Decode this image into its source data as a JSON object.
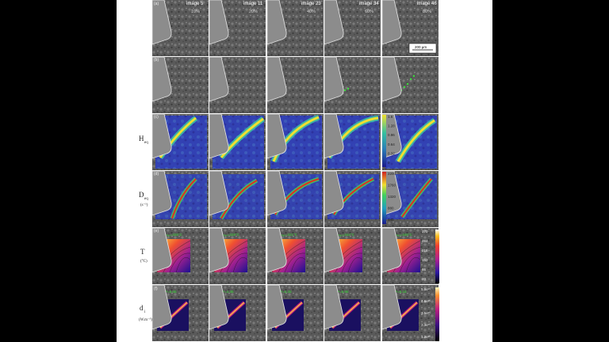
{
  "panel_letters": [
    "(a)",
    "(b)",
    "(c)",
    "(d)",
    "(e)",
    "(f)"
  ],
  "columns": [
    {
      "image": "image 5",
      "pct": "10%"
    },
    {
      "image": "image 11",
      "pct": "20%"
    },
    {
      "image": "image 23",
      "pct": "40%"
    },
    {
      "image": "image 34",
      "pct": "60%"
    },
    {
      "image": "image 46",
      "pct": "80%"
    }
  ],
  "scale_bar": "200 µm",
  "row_labels": {
    "c": {
      "main": "H",
      "sub": "eq"
    },
    "d": {
      "main": "D",
      "sub": "eq",
      "unit": "(s⁻¹)"
    },
    "e": {
      "main": "T",
      "unit": "(°C)"
    },
    "f": {
      "main": "d",
      "sub": "i",
      "unit": "(W.m⁻³)"
    }
  },
  "colorbars": {
    "c": [
      "1.6",
      "1.28",
      "0.96",
      "0.64",
      "0.32",
      "0"
    ],
    "d": [
      "2200",
      "1760",
      "1320",
      "880",
      "440"
    ],
    "e": [
      "370",
      "284",
      "218",
      "152",
      "86",
      "20"
    ],
    "f": [
      "5.8e¹⁰",
      "4.6e¹⁰",
      "3.5e¹⁰",
      "2.3e¹⁰",
      "1.2e¹⁰"
    ]
  },
  "row_e_labels": [
    "Tₘₐₓ=325°C",
    "Tₘₐₓ=329°C",
    "Tₘₐₓ=321°C",
    "Tₘₐₓ=344°C",
    "Tₘₐₓ=345°C"
  ],
  "row_f_labels": [
    "dᵢᵐᵃˣ=5.6E",
    "dᵢᵐᵃˣ=4.3E",
    "dᵢᵐᵃˣ=6.2E",
    "dᵢᵐᵃˣ=5.9E",
    "dᵢᵐᵃˣ=6.1E"
  ],
  "colors": {
    "background": "#000000",
    "page": "#ffffff",
    "green_label": "#3ddc3d",
    "tool": "#8c8c8c"
  }
}
